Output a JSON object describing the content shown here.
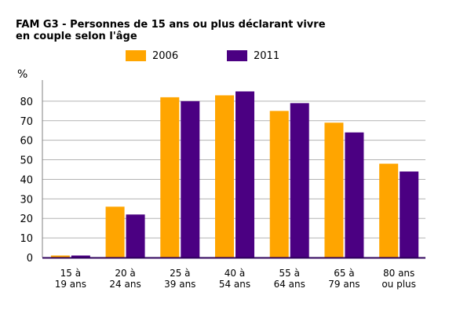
{
  "chart_data": {
    "type": "bar",
    "title": "FAM G3 - Personnes de 15 ans ou plus déclarant vivre",
    "title_line2": "en couple selon l'âge",
    "ylabel": "%",
    "ylim": [
      0,
      90
    ],
    "yticks": [
      0,
      10,
      20,
      30,
      40,
      50,
      60,
      70,
      80
    ],
    "grid": true,
    "legend_position": "top",
    "categories": [
      [
        "15 à",
        "19 ans"
      ],
      [
        "20 à",
        "24 ans"
      ],
      [
        "25 à",
        "39 ans"
      ],
      [
        "40 à",
        "54 ans"
      ],
      [
        "55 à",
        "64 ans"
      ],
      [
        "65 à",
        "79 ans"
      ],
      [
        "80 ans",
        "ou plus"
      ]
    ],
    "series": [
      {
        "name": "2006",
        "color": "#FFA500",
        "values": [
          1,
          26,
          82,
          83,
          75,
          69,
          48
        ]
      },
      {
        "name": "2011",
        "color": "#4B0082",
        "values": [
          1,
          22,
          80,
          85,
          79,
          64,
          44
        ]
      }
    ]
  }
}
